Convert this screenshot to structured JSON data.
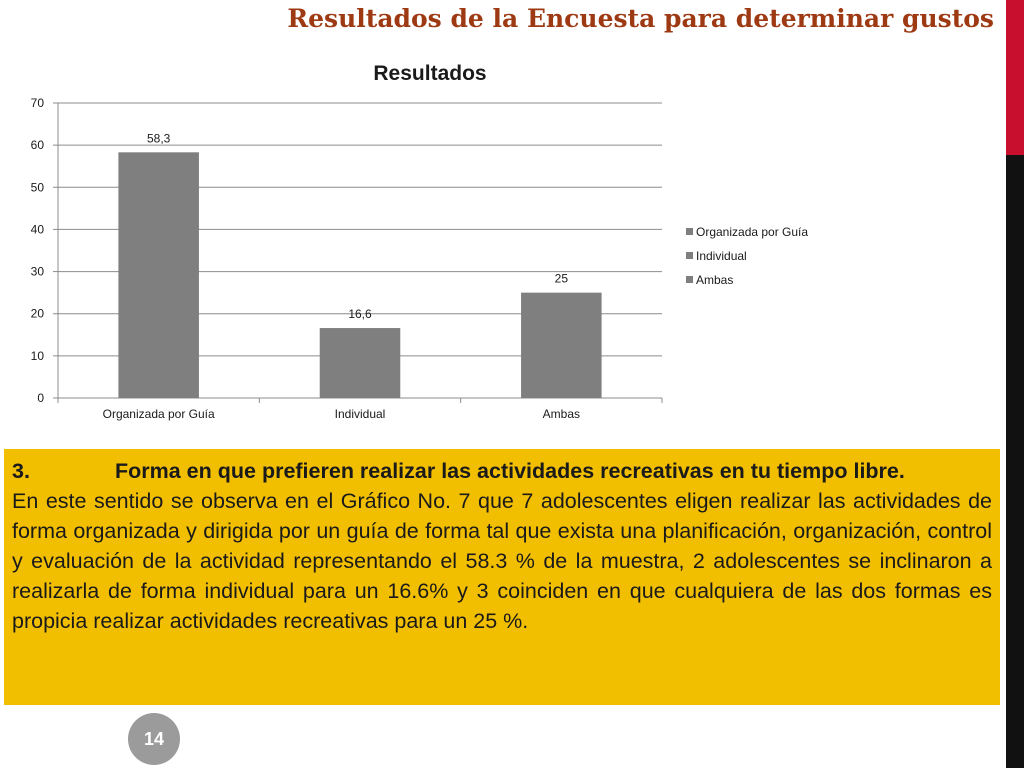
{
  "slide": {
    "title": "Resultados de la Encuesta para determinar gustos",
    "page_number": "14"
  },
  "chart_data": {
    "type": "bar",
    "title": "Resultados",
    "categories": [
      "Organizada por Guía",
      "Individual",
      "Ambas"
    ],
    "values": [
      58.3,
      16.6,
      25
    ],
    "data_labels": [
      "58,3",
      "16,6",
      "25"
    ],
    "ylim": [
      0,
      70
    ],
    "yticks": [
      0,
      10,
      20,
      30,
      40,
      50,
      60,
      70
    ],
    "legend": [
      "Organizada por Guía",
      "Individual",
      "Ambas"
    ],
    "legend_position": "right",
    "grid": true,
    "bar_color": "#7f7f7f"
  },
  "text_box": {
    "heading_number": "3.",
    "heading_text": "Forma en que prefieren realizar las actividades recreativas en tu tiempo libre.",
    "paragraph": "En este sentido se observa en el Gráfico No. 7 que 7 adolescentes eligen realizar las actividades de forma organizada y dirigida por un guía de forma tal que exista una planificación, organización, control y evaluación de la actividad representando el 58.3 % de la muestra, 2 adolescentes se inclinaron a realizarla de forma individual para un 16.6% y 3 coinciden en que cualquiera de las dos formas es propicia realizar actividades recreativas para un 25 %."
  },
  "colors": {
    "title": "#9e3a13",
    "text_box_bg": "#f2bf00",
    "accent_red": "#c8102e",
    "badge": "#9b9b9b"
  }
}
